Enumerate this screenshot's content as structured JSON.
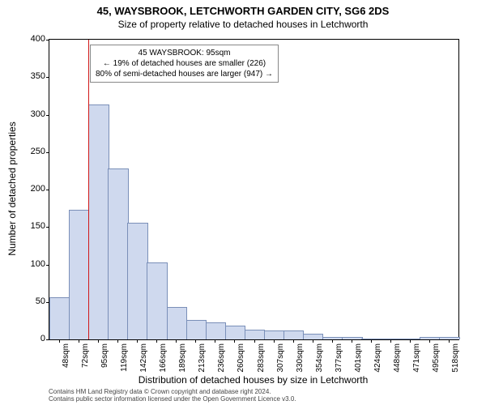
{
  "header": {
    "title": "45, WAYSBROOK, LETCHWORTH GARDEN CITY, SG6 2DS",
    "subtitle": "Size of property relative to detached houses in Letchworth"
  },
  "chart": {
    "type": "bar",
    "ylabel": "Number of detached properties",
    "xlabel": "Distribution of detached houses by size in Letchworth",
    "ylim": [
      0,
      400
    ],
    "ytick_step": 50,
    "yticks": [
      0,
      50,
      100,
      150,
      200,
      250,
      300,
      350,
      400
    ],
    "bar_fill": "#cfd9ee",
    "bar_stroke": "#7a8fb8",
    "background_color": "#ffffff",
    "border_color": "#000000",
    "marker": {
      "x_value": "95sqm",
      "color": "#d11919"
    },
    "annotation": {
      "line1": "45 WAYSBROOK: 95sqm",
      "line2": "← 19% of detached houses are smaller (226)",
      "line3": "80% of semi-detached houses are larger (947) →"
    },
    "categories": [
      "48sqm",
      "72sqm",
      "95sqm",
      "119sqm",
      "142sqm",
      "166sqm",
      "189sqm",
      "213sqm",
      "236sqm",
      "260sqm",
      "283sqm",
      "307sqm",
      "330sqm",
      "354sqm",
      "377sqm",
      "401sqm",
      "424sqm",
      "448sqm",
      "471sqm",
      "495sqm",
      "518sqm"
    ],
    "values": [
      55,
      172,
      312,
      227,
      155,
      102,
      42,
      25,
      22,
      17,
      12,
      11,
      11,
      6,
      2,
      2,
      0,
      0,
      0,
      2,
      2
    ]
  },
  "footer": {
    "line1": "Contains HM Land Registry data © Crown copyright and database right 2024.",
    "line2": "Contains public sector information licensed under the Open Government Licence v3.0."
  }
}
